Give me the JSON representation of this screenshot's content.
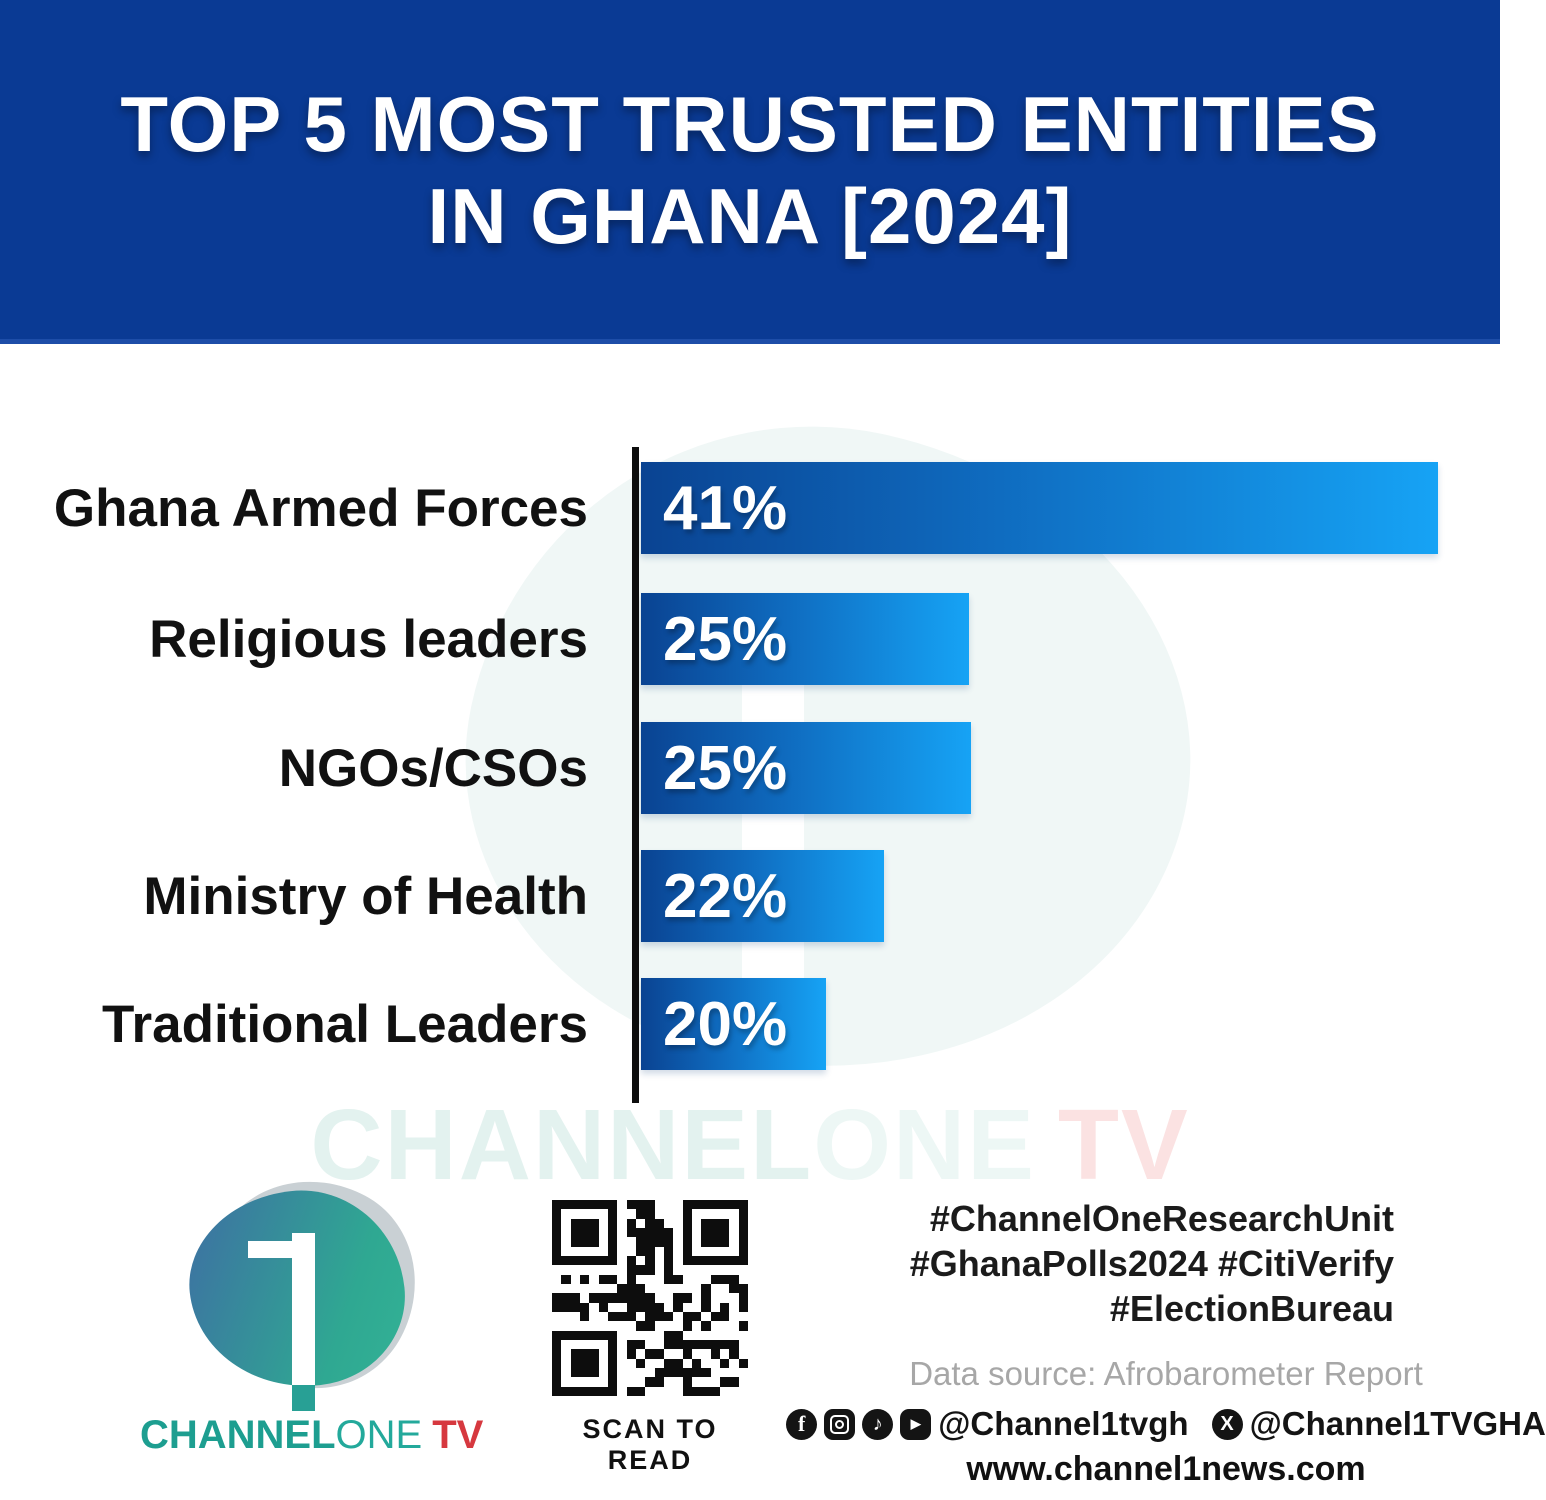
{
  "title": {
    "line1": "TOP 5 MOST TRUSTED ENTITIES",
    "line2": "IN GHANA [2024]"
  },
  "chart_data": {
    "type": "bar",
    "orientation": "horizontal",
    "title": "Top 5 most trusted entities in Ghana [2024]",
    "categories": [
      "Ghana Armed Forces",
      "Religious leaders",
      "NGOs/CSOs",
      "Ministry of Health",
      "Traditional Leaders"
    ],
    "values": [
      41,
      25,
      25,
      22,
      20
    ],
    "value_labels": [
      "41%",
      "25%",
      "25%",
      "22%",
      "20%"
    ],
    "unit": "percent",
    "bar_gradient": [
      "#0a4392",
      "#16a3f5"
    ],
    "axis_color": "#0d0d0d",
    "category_label_color": "#111111",
    "value_label_color": "#ffffff",
    "grid": false,
    "legend": false
  },
  "watermark": {
    "part1": "CHANNEL",
    "part2": "ONE",
    "part3": "TV"
  },
  "footer": {
    "logo": {
      "part1": "CHANNEL",
      "part2": "ONE",
      "part3": "TV"
    },
    "qr_caption": "SCAN TO READ",
    "hashtags": [
      "#ChannelOneResearchUnit",
      "#GhanaPolls2024 #CitiVerify",
      "#ElectionBureau"
    ],
    "data_source": "Data source: Afrobarometer Report",
    "social": {
      "handle1": "@Channel1tvgh",
      "handle2": "@Channel1TVGHA"
    },
    "website": "www.channel1news.com"
  },
  "colors": {
    "header_bg": "#0a3a94",
    "accent_teal": "#1d9e90",
    "accent_red": "#d6383f",
    "source_gray": "#a7a7a7"
  }
}
